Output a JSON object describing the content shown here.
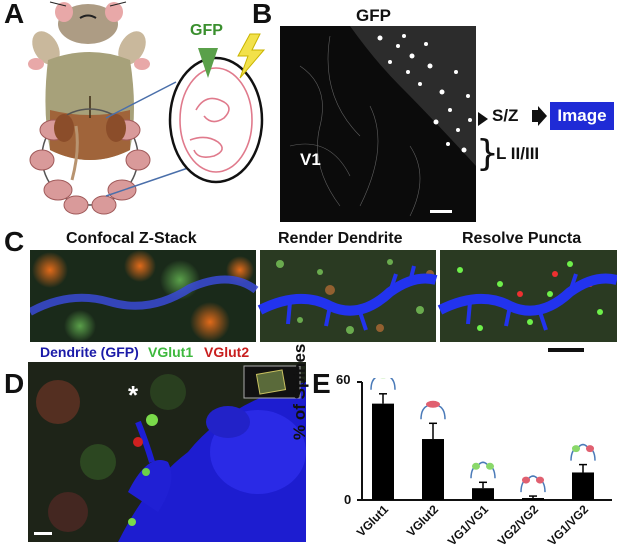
{
  "panels": {
    "a": {
      "letter": "A",
      "gfp_label": "GFP"
    },
    "b": {
      "letter": "B",
      "title": "GFP",
      "region": "V1",
      "sz": "S/Z",
      "image_label": "Image",
      "layer": "L II/III"
    },
    "c": {
      "letter": "C",
      "titles": [
        "Confocal Z-Stack",
        "Render Dendrite",
        "Resolve Puncta"
      ],
      "legend": {
        "dendrite": "Dendrite (GFP)",
        "vglut1": "VGlut1",
        "vglut2": "VGlut2"
      }
    },
    "d": {
      "letter": "D",
      "asterisk": "*"
    },
    "e": {
      "letter": "E"
    }
  },
  "colors": {
    "blue_label": "#1a1aa8",
    "green_label": "#3db83d",
    "red_label": "#c81e1e",
    "image_bg": "#1f2bd6"
  },
  "chart_data": {
    "type": "bar",
    "categories": [
      "VGlut1",
      "VGlut2",
      "VG1/VG1",
      "VG2/VG2",
      "VG1/VG2"
    ],
    "values": [
      49,
      31,
      6,
      1,
      14
    ],
    "errors": [
      5,
      8,
      3,
      1,
      4
    ],
    "ylabel": "% of Spines",
    "yticks": [
      "0",
      "60"
    ],
    "ylim": [
      0,
      60
    ]
  }
}
